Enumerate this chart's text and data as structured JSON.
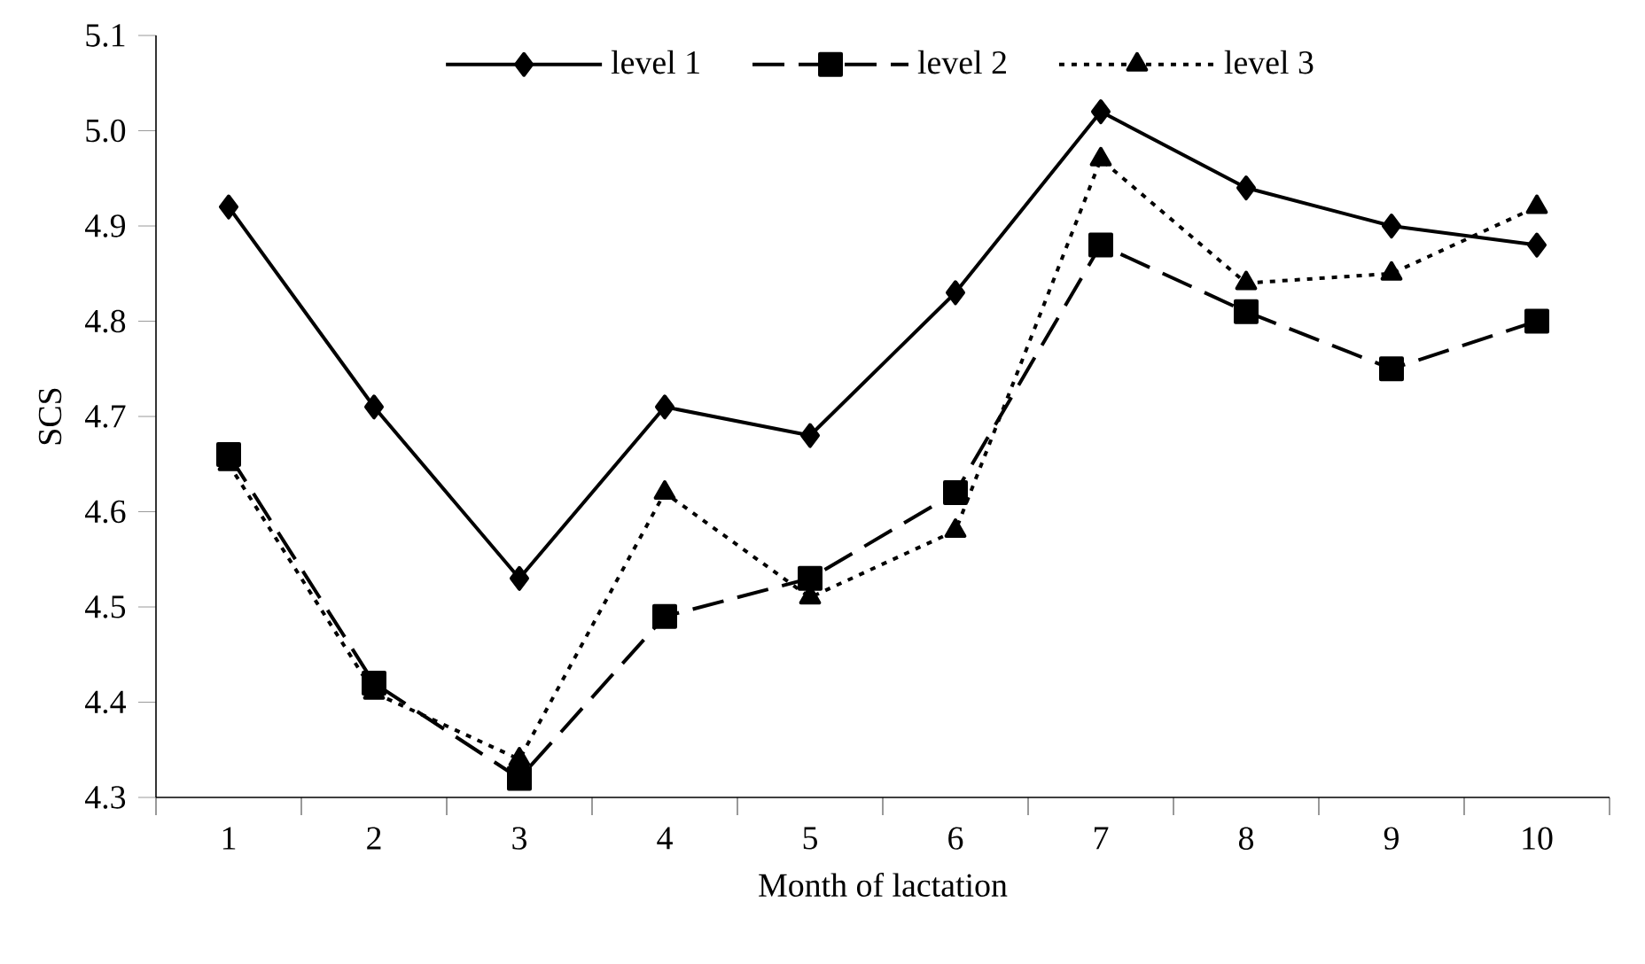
{
  "chart_data": {
    "type": "line",
    "xlabel": "Month of lactation",
    "ylabel": "SCS",
    "categories": [
      "1",
      "2",
      "3",
      "4",
      "5",
      "6",
      "7",
      "8",
      "9",
      "10"
    ],
    "series": [
      {
        "name": "level 1",
        "color": "#000000",
        "marker": "diamond",
        "line_style": "solid",
        "values": [
          4.92,
          4.71,
          4.53,
          4.71,
          4.68,
          4.83,
          5.02,
          4.94,
          4.9,
          4.88
        ]
      },
      {
        "name": "level 2",
        "color": "#000000",
        "marker": "square",
        "line_style": "dashed",
        "values": [
          4.66,
          4.42,
          4.32,
          4.49,
          4.53,
          4.62,
          4.88,
          4.81,
          4.75,
          4.8
        ]
      },
      {
        "name": "level 3",
        "color": "#000000",
        "marker": "triangle",
        "line_style": "dotted",
        "values": [
          4.65,
          4.41,
          4.34,
          4.62,
          4.51,
          4.58,
          4.97,
          4.84,
          4.85,
          4.92
        ]
      }
    ],
    "ylim": [
      4.3,
      5.1
    ],
    "yticks": [
      4.3,
      4.4,
      4.5,
      4.6,
      4.7,
      4.8,
      4.9,
      {
        "value": 5.0,
        "label": "5.0"
      },
      5.1
    ],
    "grid": false,
    "legend": "top"
  }
}
